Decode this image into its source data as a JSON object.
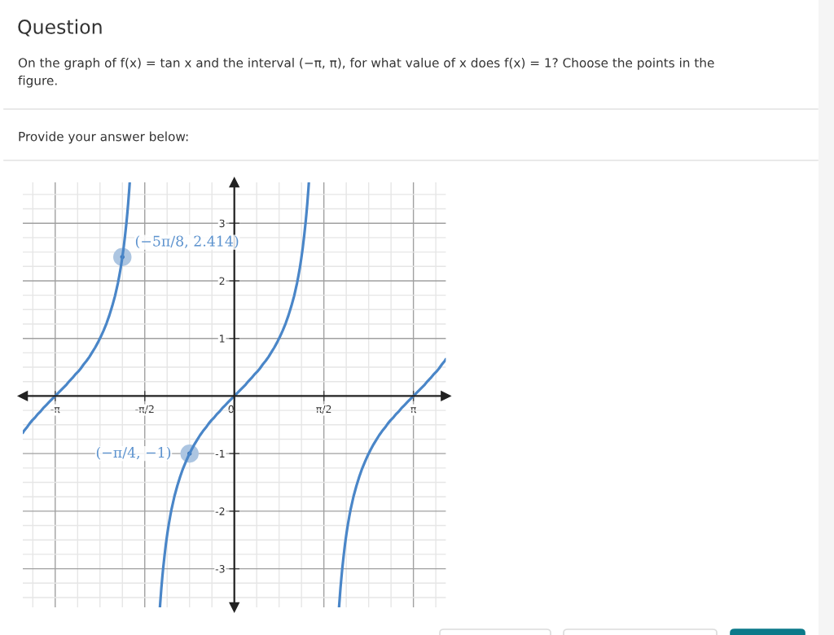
{
  "chart_data": {
    "type": "line",
    "title": "Question",
    "subtitle": "On the graph of f(x) = tan x and the interval (−π, π), for what value of x does f(x) = 1? Choose the points in the figure.",
    "annotations": [
      "Provide your answer below:",
      {
        "text": "(−5π/8, 2.414)",
        "x": -1.9635,
        "y": 2.414
      },
      {
        "text": "(−π/4, −1)",
        "x": -0.7854,
        "y": -1
      }
    ],
    "series": [
      {
        "color": "#4a86c8",
        "x": [
          -3.71,
          -3.692,
          -3.642,
          -3.592,
          -3.542,
          -3.492,
          -3.442,
          -3.392,
          -3.342,
          -3.292,
          -3.242,
          -3.192,
          -3.142,
          -3.092,
          -3.042,
          -2.992,
          -2.942,
          -2.892,
          -2.842,
          -2.792,
          -2.742,
          -2.692,
          -2.642,
          -2.592,
          -2.542,
          -2.492,
          -2.442,
          -2.392,
          -2.342,
          -2.292,
          -2.242,
          -2.192,
          -2.142,
          -2.092,
          -2.042,
          -2.017,
          -1.992,
          -1.967,
          -1.942,
          -1.917,
          -1.892,
          -1.877,
          -1.862,
          -1.852,
          -1.842,
          -1.835
        ],
        "values": [
          -0.64,
          -0.61,
          -0.55,
          -0.48,
          -0.42,
          -0.37,
          -0.31,
          -0.26,
          -0.2,
          -0.15,
          -0.1,
          -0.05,
          0,
          0.05,
          0.1,
          0.15,
          0.2,
          0.26,
          0.31,
          0.37,
          0.42,
          0.48,
          0.55,
          0.61,
          0.68,
          0.76,
          0.84,
          0.93,
          1.03,
          1.14,
          1.26,
          1.4,
          1.56,
          1.74,
          1.96,
          2.09,
          2.23,
          2.39,
          2.57,
          2.78,
          3.01,
          3.17,
          3.34,
          3.47,
          3.6,
          3.7
        ]
      },
      {
        "color": "#4a86c8",
        "x": [
          -1.305,
          -1.3,
          -1.29,
          -1.28,
          -1.265,
          -1.25,
          -1.225,
          -1.2,
          -1.175,
          -1.15,
          -1.125,
          -1.1,
          -1.05,
          -1.0,
          -0.95,
          -0.9,
          -0.85,
          -0.8,
          -0.75,
          -0.7,
          -0.65,
          -0.6,
          -0.55,
          -0.5,
          -0.45,
          -0.4,
          -0.35,
          -0.3,
          -0.25,
          -0.2,
          -0.15,
          -0.1,
          -0.05,
          0,
          0.05,
          0.1,
          0.15,
          0.2,
          0.25,
          0.3,
          0.35,
          0.4,
          0.45,
          0.5,
          0.55,
          0.6,
          0.65,
          0.7,
          0.75,
          0.8,
          0.85,
          0.9,
          0.95,
          1.0,
          1.05,
          1.1,
          1.125,
          1.15,
          1.175,
          1.2,
          1.225,
          1.25,
          1.265,
          1.28,
          1.29,
          1.3,
          1.307
        ],
        "values": [
          -3.67,
          -3.6,
          -3.47,
          -3.34,
          -3.17,
          -3.01,
          -2.78,
          -2.57,
          -2.39,
          -2.23,
          -2.09,
          -1.96,
          -1.74,
          -1.56,
          -1.4,
          -1.26,
          -1.14,
          -1.03,
          -0.93,
          -0.84,
          -0.76,
          -0.68,
          -0.61,
          -0.55,
          -0.48,
          -0.42,
          -0.37,
          -0.31,
          -0.26,
          -0.2,
          -0.15,
          -0.1,
          -0.05,
          0,
          0.05,
          0.1,
          0.15,
          0.2,
          0.26,
          0.31,
          0.37,
          0.42,
          0.48,
          0.55,
          0.61,
          0.68,
          0.76,
          0.84,
          0.93,
          1.03,
          1.14,
          1.26,
          1.4,
          1.56,
          1.74,
          1.96,
          2.09,
          2.23,
          2.39,
          2.57,
          2.78,
          3.01,
          3.17,
          3.34,
          3.47,
          3.6,
          3.7
        ]
      },
      {
        "color": "#4a86c8",
        "x": [
          1.837,
          1.842,
          1.852,
          1.862,
          1.877,
          1.892,
          1.917,
          1.942,
          1.967,
          1.992,
          2.017,
          2.042,
          2.092,
          2.142,
          2.192,
          2.242,
          2.292,
          2.342,
          2.392,
          2.442,
          2.492,
          2.542,
          2.592,
          2.642,
          2.692,
          2.742,
          2.792,
          2.842,
          2.892,
          2.942,
          2.992,
          3.042,
          3.092,
          3.142,
          3.192,
          3.242,
          3.292,
          3.342,
          3.392,
          3.442,
          3.492,
          3.542,
          3.592,
          3.642,
          3.692,
          3.71
        ],
        "values": [
          -3.67,
          -3.6,
          -3.47,
          -3.34,
          -3.17,
          -3.01,
          -2.78,
          -2.57,
          -2.39,
          -2.23,
          -2.09,
          -1.96,
          -1.74,
          -1.56,
          -1.4,
          -1.26,
          -1.14,
          -1.03,
          -0.93,
          -0.84,
          -0.76,
          -0.68,
          -0.61,
          -0.55,
          -0.48,
          -0.42,
          -0.37,
          -0.31,
          -0.26,
          -0.2,
          -0.15,
          -0.1,
          -0.05,
          0,
          0.05,
          0.1,
          0.15,
          0.2,
          0.26,
          0.31,
          0.37,
          0.42,
          0.48,
          0.55,
          0.61,
          0.64
        ]
      },
      {
        "type": "scatter",
        "marker": "circle",
        "color": "#2f6db5",
        "x": [
          -1.9635,
          -0.7854
        ],
        "values": [
          2.414,
          -1
        ]
      }
    ],
    "xlim": [
      -3.71,
      3.71
    ],
    "ylim": [
      -3.67,
      3.71
    ],
    "xticks": [
      {
        "value": -3.1416,
        "label": "-π"
      },
      {
        "value": -1.5708,
        "label": "-π/2"
      },
      {
        "value": 0,
        "label": "0"
      },
      {
        "value": 1.5708,
        "label": "π/2"
      },
      {
        "value": 3.1416,
        "label": "π"
      },
      {
        "value": -3.5343,
        "label": null
      },
      {
        "value": -2.7489,
        "label": null
      },
      {
        "value": -2.3562,
        "label": null
      },
      {
        "value": -1.9635,
        "label": null
      },
      {
        "value": -1.1781,
        "label": null
      },
      {
        "value": -0.7854,
        "label": null
      },
      {
        "value": -0.3927,
        "label": null
      },
      {
        "value": 0.3927,
        "label": null
      },
      {
        "value": 0.7854,
        "label": null
      },
      {
        "value": 1.1781,
        "label": null
      },
      {
        "value": 1.9635,
        "label": null
      },
      {
        "value": 2.3562,
        "label": null
      },
      {
        "value": 2.7489,
        "label": null
      },
      {
        "value": 3.5343,
        "label": null
      }
    ],
    "yticks": [
      -3,
      -2,
      -1,
      1,
      2,
      3,
      {
        "value": -3.5,
        "label": null
      },
      {
        "value": -3.25,
        "label": null
      },
      {
        "value": -2.75,
        "label": null
      },
      {
        "value": -2.5,
        "label": null
      },
      {
        "value": -2.25,
        "label": null
      },
      {
        "value": -1.75,
        "label": null
      },
      {
        "value": -1.5,
        "label": null
      },
      {
        "value": -1.25,
        "label": null
      },
      {
        "value": -0.75,
        "label": null
      },
      {
        "value": -0.5,
        "label": null
      },
      {
        "value": -0.25,
        "label": null
      },
      {
        "value": 0.25,
        "label": null
      },
      {
        "value": 0.5,
        "label": null
      },
      {
        "value": 0.75,
        "label": null
      },
      {
        "value": 1.25,
        "label": null
      },
      {
        "value": 1.5,
        "label": null
      },
      {
        "value": 1.75,
        "label": null
      },
      {
        "value": 2.25,
        "label": null
      },
      {
        "value": 2.5,
        "label": null
      },
      {
        "value": 2.75,
        "label": null
      },
      {
        "value": 3.25,
        "label": null
      },
      {
        "value": 3.5,
        "label": null
      }
    ],
    "grid": true,
    "line_style": "solid"
  }
}
